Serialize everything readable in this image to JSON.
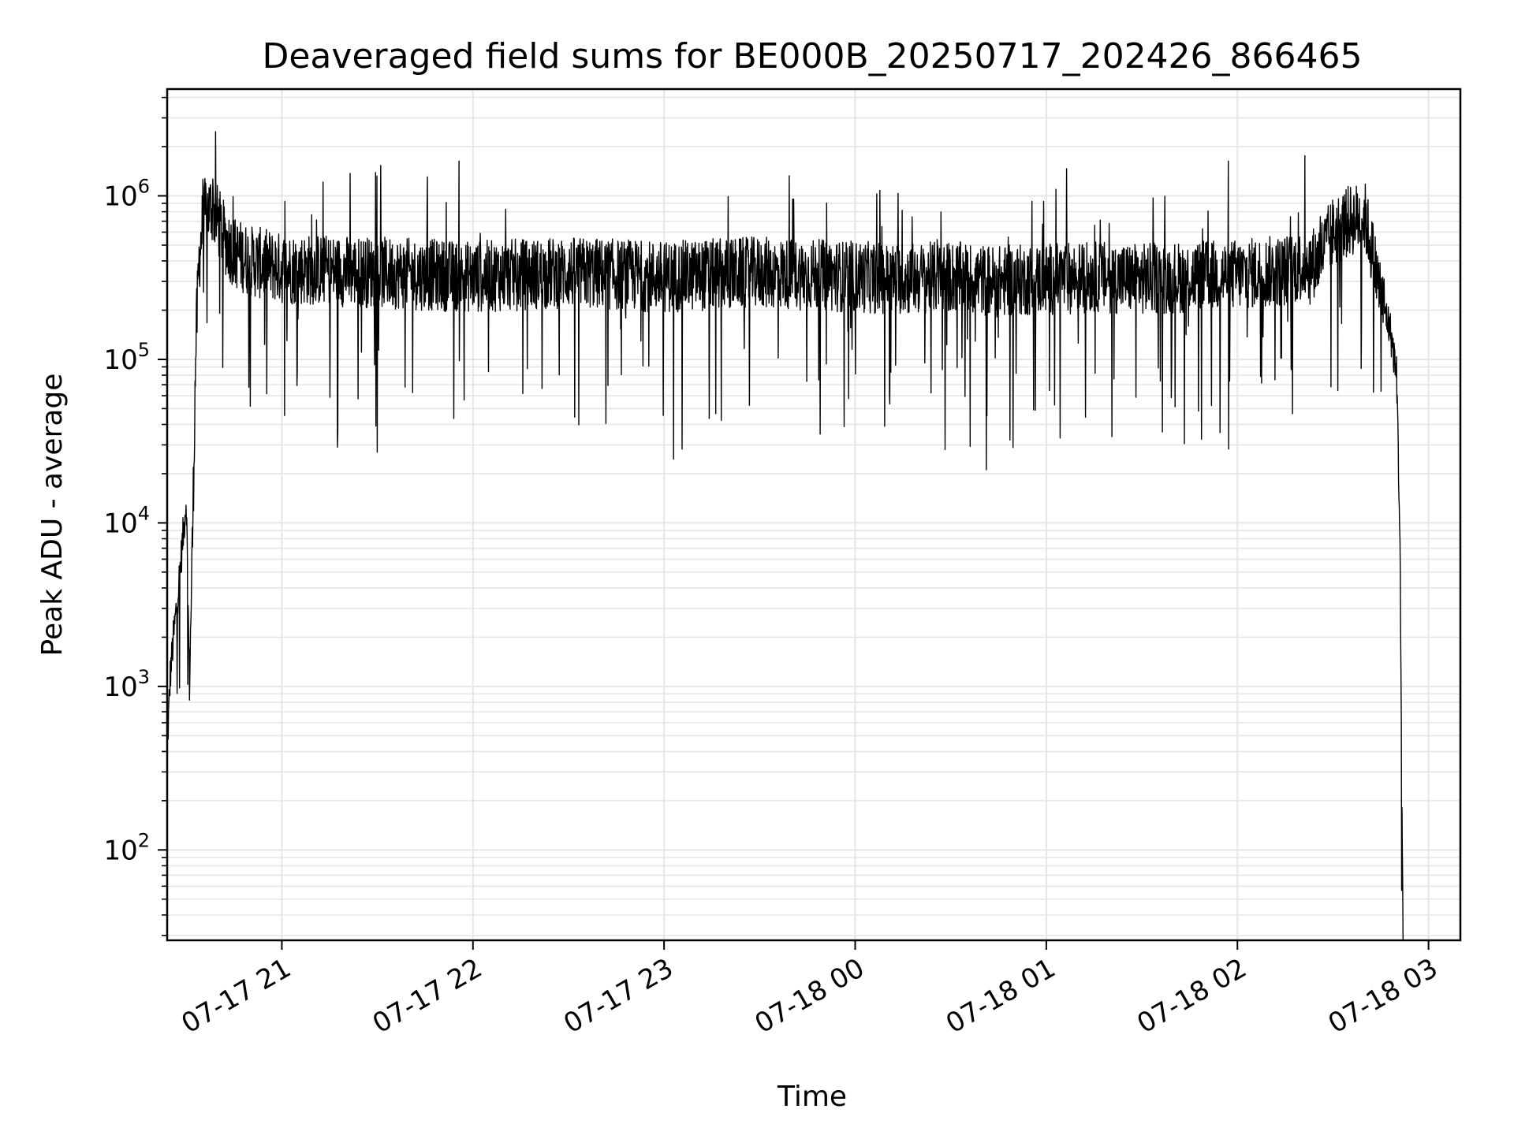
{
  "chart_data": {
    "type": "line",
    "title": "Deaveraged field sums for BE000B_20250717_202426_866465",
    "xlabel": "Time",
    "ylabel": "Peak ADU - average",
    "yscale": "log",
    "ylim": [
      28,
      4500000
    ],
    "xlim": [
      "2025-07-17 20:24",
      "2025-07-18 03:10"
    ],
    "grid": true,
    "line_color": "#000000",
    "grid_color": "#e6e6e6",
    "x_ticks": [
      {
        "value": "2025-07-17 21:00",
        "label": "07-17 21"
      },
      {
        "value": "2025-07-17 22:00",
        "label": "07-17 22"
      },
      {
        "value": "2025-07-17 23:00",
        "label": "07-17 23"
      },
      {
        "value": "2025-07-18 00:00",
        "label": "07-18 00"
      },
      {
        "value": "2025-07-18 01:00",
        "label": "07-18 01"
      },
      {
        "value": "2025-07-18 02:00",
        "label": "07-18 02"
      },
      {
        "value": "2025-07-18 03:00",
        "label": "07-18 03"
      }
    ],
    "y_ticks": [
      {
        "value": 100,
        "base": "10",
        "exp": "2"
      },
      {
        "value": 1000,
        "base": "10",
        "exp": "3"
      },
      {
        "value": 10000,
        "base": "10",
        "exp": "4"
      },
      {
        "value": 100000,
        "base": "10",
        "exp": "5"
      },
      {
        "value": 1000000,
        "base": "10",
        "exp": "6"
      }
    ],
    "series": [
      {
        "x": [
          "2025-07-17 20:24",
          "2025-07-17 20:25",
          "2025-07-17 20:26",
          "2025-07-17 20:28",
          "2025-07-17 20:30",
          "2025-07-17 20:31",
          "2025-07-17 20:32",
          "2025-07-17 20:33",
          "2025-07-17 20:34",
          "2025-07-17 20:35",
          "2025-07-17 20:36",
          "2025-07-17 20:38",
          "2025-07-17 20:40",
          "2025-07-17 20:42",
          "2025-07-17 20:45",
          "2025-07-17 20:48",
          "2025-07-17 20:50",
          "2025-07-17 20:55",
          "2025-07-17 21:00",
          "2025-07-17 21:15",
          "2025-07-17 21:30",
          "2025-07-17 21:45",
          "2025-07-17 22:00",
          "2025-07-17 22:15",
          "2025-07-17 22:30",
          "2025-07-17 22:45",
          "2025-07-17 23:00",
          "2025-07-17 23:15",
          "2025-07-17 23:30",
          "2025-07-17 23:45",
          "2025-07-18 00:00",
          "2025-07-18 00:15",
          "2025-07-18 00:30",
          "2025-07-18 00:45",
          "2025-07-18 01:00",
          "2025-07-18 01:15",
          "2025-07-18 01:30",
          "2025-07-18 01:45",
          "2025-07-18 02:00",
          "2025-07-18 02:15",
          "2025-07-18 02:25",
          "2025-07-18 02:30",
          "2025-07-18 02:35",
          "2025-07-18 02:40",
          "2025-07-18 02:45",
          "2025-07-18 02:48",
          "2025-07-18 02:50",
          "2025-07-18 02:51",
          "2025-07-18 02:52"
        ],
        "y": [
          400,
          1200,
          2000,
          5000,
          14000,
          1000,
          9000,
          120000,
          400000,
          650000,
          800000,
          850000,
          700000,
          550000,
          450000,
          420000,
          400000,
          380000,
          360000,
          350000,
          340000,
          330000,
          320000,
          330000,
          340000,
          330000,
          320000,
          330000,
          340000,
          330000,
          320000,
          310000,
          320000,
          300000,
          310000,
          320000,
          310000,
          320000,
          330000,
          350000,
          400000,
          600000,
          700000,
          750000,
          250000,
          150000,
          80000,
          9000,
          30
        ]
      }
    ]
  }
}
